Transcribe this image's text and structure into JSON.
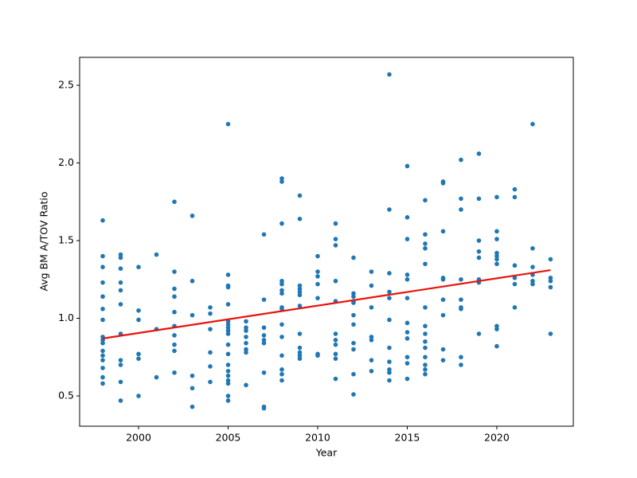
{
  "chart_data": {
    "type": "scatter",
    "x_label": "Year",
    "y_label": "Avg BM A/TOV Ratio",
    "color": "#1f77b4",
    "groups": [
      {
        "x": 1998,
        "values": [
          1.63,
          1.4,
          1.33,
          1.23,
          1.14,
          1.06,
          0.99,
          0.88,
          0.86,
          0.84,
          0.79,
          0.76,
          0.73,
          0.68,
          0.62,
          0.58
        ]
      },
      {
        "x": 1999,
        "values": [
          1.41,
          1.39,
          1.32,
          1.23,
          1.18,
          1.09,
          0.9,
          0.73,
          0.7,
          0.59,
          0.47
        ]
      },
      {
        "x": 2000,
        "values": [
          1.33,
          1.05,
          0.99,
          0.77,
          0.74,
          0.5
        ]
      },
      {
        "x": 2001,
        "values": [
          1.41,
          0.93,
          0.62
        ]
      },
      {
        "x": 2002,
        "values": [
          1.75,
          1.3,
          1.19,
          1.14,
          1.04,
          0.95,
          0.89,
          0.83,
          0.79,
          0.65
        ]
      },
      {
        "x": 2003,
        "values": [
          1.66,
          1.24,
          1.02,
          0.63,
          0.55,
          0.43
        ]
      },
      {
        "x": 2004,
        "values": [
          1.07,
          1.03,
          0.93,
          0.78,
          0.69,
          0.59
        ]
      },
      {
        "x": 2005,
        "values": [
          2.25,
          1.28,
          1.21,
          1.2,
          1.09,
          0.98,
          0.96,
          0.94,
          0.92,
          0.9,
          0.83,
          0.77,
          0.7,
          0.66,
          0.63,
          0.6,
          0.58,
          0.5,
          0.47
        ]
      },
      {
        "x": 2006,
        "values": [
          0.98,
          0.94,
          0.92,
          0.88,
          0.84,
          0.8,
          0.78,
          0.57
        ]
      },
      {
        "x": 2007,
        "values": [
          1.54,
          1.12,
          0.94,
          0.89,
          0.86,
          0.84,
          0.65,
          0.43,
          0.42
        ]
      },
      {
        "x": 2008,
        "values": [
          1.9,
          1.88,
          1.61,
          1.24,
          1.22,
          1.18,
          1.16,
          1.07,
          1.06,
          0.96,
          0.88,
          0.76,
          0.67,
          0.64,
          0.6
        ]
      },
      {
        "x": 2009,
        "values": [
          1.79,
          1.64,
          1.21,
          1.19,
          1.17,
          1.15,
          1.08,
          0.9,
          0.81,
          0.78,
          0.76,
          0.74
        ]
      },
      {
        "x": 2010,
        "values": [
          1.4,
          1.3,
          1.27,
          1.22,
          1.13,
          0.77,
          0.76
        ]
      },
      {
        "x": 2011,
        "values": [
          1.61,
          1.51,
          1.47,
          1.24,
          1.11,
          0.9,
          0.86,
          0.83,
          0.77,
          0.74,
          0.61
        ]
      },
      {
        "x": 2012,
        "values": [
          1.39,
          1.16,
          1.14,
          1.11,
          1.1,
          1.02,
          0.96,
          0.84,
          0.8,
          0.64,
          0.51
        ]
      },
      {
        "x": 2013,
        "values": [
          1.3,
          1.21,
          1.07,
          0.88,
          0.86,
          0.73,
          0.66
        ]
      },
      {
        "x": 2014,
        "values": [
          2.57,
          1.7,
          1.29,
          1.17,
          1.13,
          0.99,
          0.81,
          0.72,
          0.67,
          0.65,
          0.6
        ]
      },
      {
        "x": 2015,
        "values": [
          1.98,
          1.65,
          1.51,
          1.28,
          1.25,
          1.13,
          0.97,
          0.91,
          0.87,
          0.75,
          0.71,
          0.61
        ]
      },
      {
        "x": 2016,
        "values": [
          1.76,
          1.54,
          1.48,
          1.45,
          1.35,
          1.07,
          0.95,
          0.9,
          0.85,
          0.81,
          0.75,
          0.7,
          0.67,
          0.64
        ]
      },
      {
        "x": 2017,
        "values": [
          1.88,
          1.87,
          1.56,
          1.26,
          1.25,
          1.12,
          1.02,
          0.8,
          0.73
        ]
      },
      {
        "x": 2018,
        "values": [
          2.02,
          1.77,
          1.7,
          1.25,
          1.12,
          1.07,
          1.06,
          0.75,
          0.7
        ]
      },
      {
        "x": 2019,
        "values": [
          2.06,
          1.77,
          1.5,
          1.43,
          1.39,
          1.25,
          1.23,
          0.9
        ]
      },
      {
        "x": 2020,
        "values": [
          1.78,
          1.56,
          1.51,
          1.42,
          1.4,
          1.38,
          1.35,
          0.95,
          0.93,
          0.82
        ]
      },
      {
        "x": 2021,
        "values": [
          1.83,
          1.78,
          1.34,
          1.26,
          1.22,
          1.07
        ]
      },
      {
        "x": 2022,
        "values": [
          2.25,
          1.45,
          1.33,
          1.28,
          1.24,
          1.22
        ]
      },
      {
        "x": 2023,
        "values": [
          1.38,
          1.26,
          1.24,
          1.2,
          0.9
        ]
      }
    ],
    "trend_line": {
      "x": [
        1998,
        2023
      ],
      "values": [
        0.87,
        1.31
      ],
      "color": "#e8120c"
    },
    "xlim": [
      1996.71,
      2024.27
    ],
    "ylim": [
      0.305,
      2.68
    ],
    "xticks": [
      2000,
      2005,
      2010,
      2015,
      2020
    ],
    "yticks": [
      0.5,
      {
        "value": 1,
        "label": "1.0"
      },
      1.5,
      {
        "value": 2,
        "label": "2.0"
      },
      2.5
    ]
  }
}
